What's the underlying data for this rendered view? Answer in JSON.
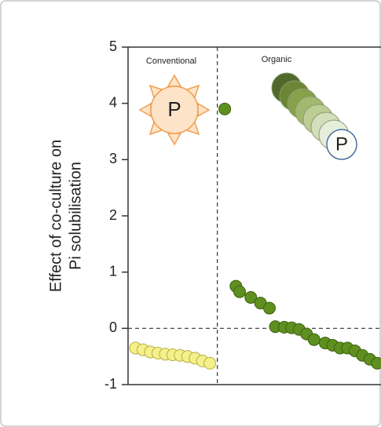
{
  "chart_data": {
    "type": "scatter",
    "ylabel": [
      "Effect of co-culture on",
      "Pi solubilisation"
    ],
    "annotations": [
      "Conventional",
      "Organic"
    ],
    "icon_labels": [
      "P",
      "P"
    ],
    "xlim": [
      0,
      34
    ],
    "ylim": [
      -1,
      5
    ],
    "yticks": [
      5,
      4,
      3,
      2,
      1,
      0,
      -1
    ],
    "vline": 12,
    "hline": 0,
    "series": [
      {
        "color": "#f4f08c",
        "x": [
          1,
          2,
          3,
          4,
          5,
          6,
          7,
          8,
          9,
          10,
          11
        ],
        "values": [
          -0.35,
          -0.38,
          -0.42,
          -0.44,
          -0.46,
          -0.47,
          -0.48,
          -0.5,
          -0.53,
          -0.58,
          -0.62
        ]
      },
      {
        "color": "#5f8f1f",
        "x": [
          13,
          14.5,
          15,
          16.5,
          17.8,
          19,
          19.8,
          21,
          22,
          23,
          24,
          25,
          26.5,
          27.5,
          28.5,
          29.5,
          30.5,
          31.5,
          32.5,
          33.5
        ],
        "values": [
          3.9,
          0.75,
          0.65,
          0.55,
          0.45,
          0.36,
          0.03,
          0.02,
          0.01,
          -0.02,
          -0.1,
          -0.2,
          -0.26,
          -0.3,
          -0.35,
          -0.35,
          -0.4,
          -0.48,
          -0.55,
          -0.62
        ]
      }
    ]
  }
}
